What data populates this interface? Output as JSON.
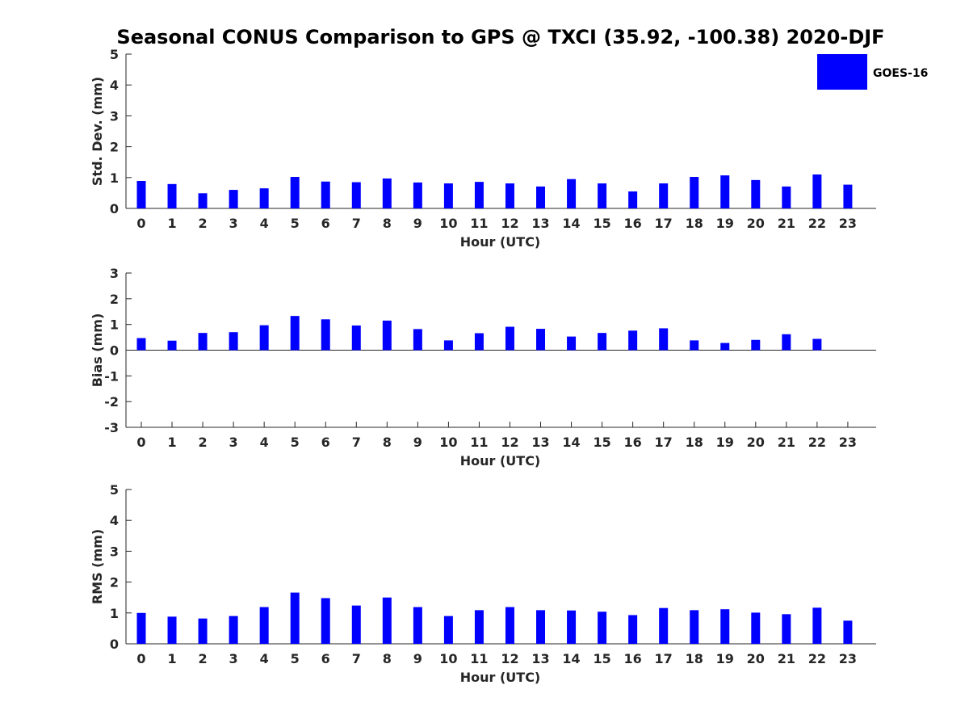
{
  "figure": {
    "title": "Seasonal CONUS Comparison to GPS @ TXCI (35.92, -100.38) 2020-DJF",
    "bar_color": "#0000ff"
  },
  "legend": {
    "entries": [
      "GOES-16"
    ],
    "placement": "top-right"
  },
  "chart_data": [
    {
      "type": "bar",
      "title": "Seasonal CONUS Comparison to GPS @ TXCI (35.92, -100.38) 2020-DJF",
      "xlabel": "Hour (UTC)",
      "ylabel": "Std. Dev. (mm)",
      "categories": [
        "0",
        "1",
        "2",
        "3",
        "4",
        "5",
        "6",
        "7",
        "8",
        "9",
        "10",
        "11",
        "12",
        "13",
        "14",
        "15",
        "16",
        "17",
        "18",
        "19",
        "20",
        "21",
        "22",
        "23"
      ],
      "series": [
        {
          "name": "GOES-16",
          "values": [
            0.89,
            0.79,
            0.49,
            0.6,
            0.65,
            1.02,
            0.87,
            0.85,
            0.97,
            0.84,
            0.81,
            0.86,
            0.81,
            0.71,
            0.95,
            0.81,
            0.55,
            0.81,
            1.02,
            1.07,
            0.92,
            0.71,
            1.1,
            0.77
          ]
        }
      ],
      "ylim": [
        0,
        5
      ],
      "yticks": [
        0,
        1,
        2,
        3,
        4,
        5
      ],
      "grid": false
    },
    {
      "type": "bar",
      "title": "",
      "xlabel": "Hour (UTC)",
      "ylabel": "Bias (mm)",
      "categories": [
        "0",
        "1",
        "2",
        "3",
        "4",
        "5",
        "6",
        "7",
        "8",
        "9",
        "10",
        "11",
        "12",
        "13",
        "14",
        "15",
        "16",
        "17",
        "18",
        "19",
        "20",
        "21",
        "22",
        "23"
      ],
      "series": [
        {
          "name": "GOES-16",
          "values": [
            0.47,
            0.37,
            0.67,
            0.7,
            0.97,
            1.33,
            1.2,
            0.96,
            1.15,
            0.82,
            0.38,
            0.66,
            0.91,
            0.83,
            0.53,
            0.67,
            0.76,
            0.85,
            0.38,
            0.28,
            0.4,
            0.62,
            0.44,
            0.0
          ]
        }
      ],
      "ylim": [
        -3,
        3
      ],
      "yticks": [
        -3,
        -2,
        -1,
        0,
        1,
        2,
        3
      ],
      "grid": false
    },
    {
      "type": "bar",
      "title": "",
      "xlabel": "Hour (UTC)",
      "ylabel": "RMS (mm)",
      "categories": [
        "0",
        "1",
        "2",
        "3",
        "4",
        "5",
        "6",
        "7",
        "8",
        "9",
        "10",
        "11",
        "12",
        "13",
        "14",
        "15",
        "16",
        "17",
        "18",
        "19",
        "20",
        "21",
        "22",
        "23"
      ],
      "series": [
        {
          "name": "GOES-16",
          "values": [
            1.0,
            0.88,
            0.82,
            0.9,
            1.19,
            1.66,
            1.48,
            1.24,
            1.5,
            1.19,
            0.9,
            1.09,
            1.19,
            1.09,
            1.08,
            1.04,
            0.93,
            1.16,
            1.09,
            1.12,
            1.01,
            0.96,
            1.17,
            0.75
          ]
        }
      ],
      "ylim": [
        0,
        5
      ],
      "yticks": [
        0,
        1,
        2,
        3,
        4,
        5
      ],
      "grid": false
    }
  ]
}
